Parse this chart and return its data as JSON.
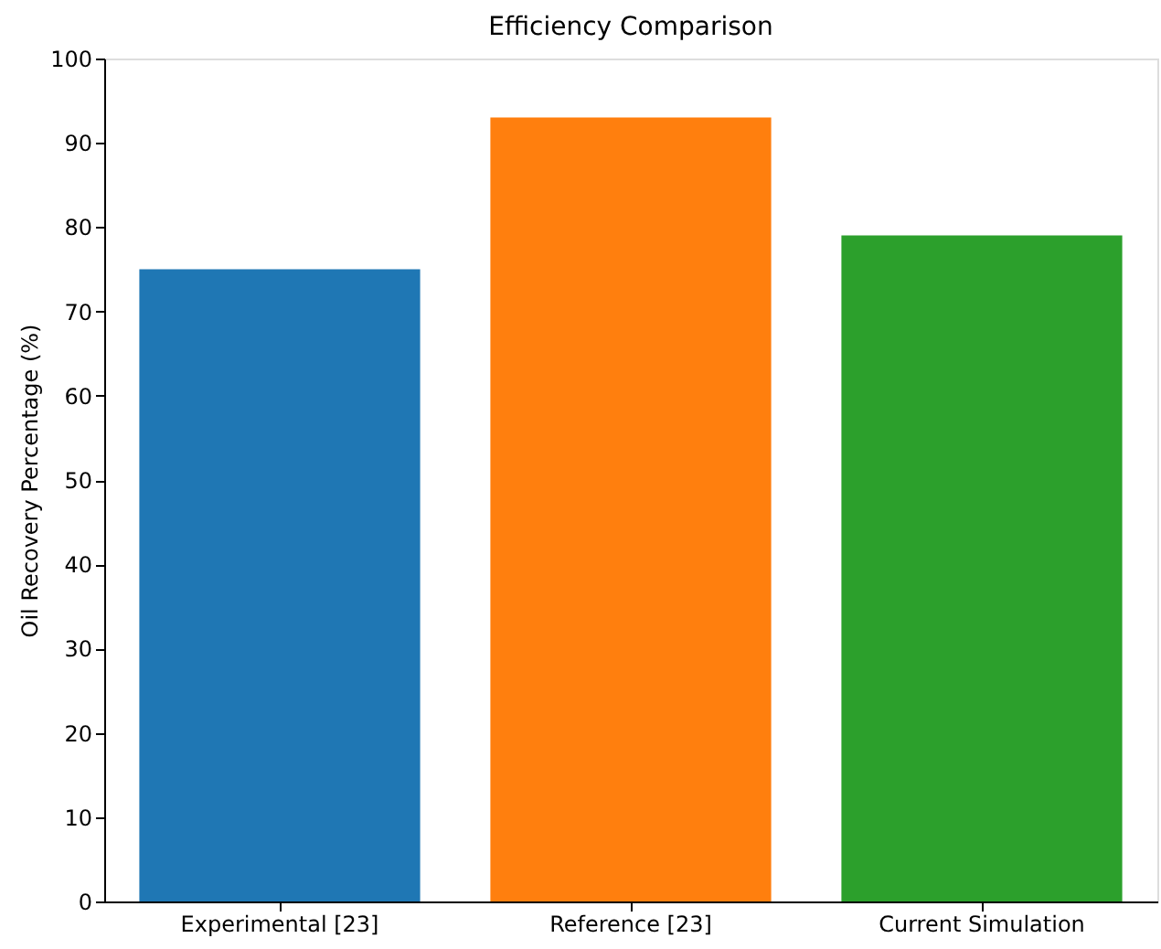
{
  "chart_data": {
    "type": "bar",
    "title": "Efficiency Comparison",
    "ylabel": "Oil Recovery Percentage (%)",
    "categories": [
      "Experimental [23]",
      "Reference [23]",
      "Current Simulation"
    ],
    "values": [
      75,
      93,
      79
    ],
    "colors": [
      "#1f77b4",
      "#ff7f0e",
      "#2ca02c"
    ],
    "ylim": [
      0,
      100
    ],
    "yticks": [
      0,
      10,
      20,
      30,
      40,
      50,
      60,
      70,
      80,
      90,
      100
    ],
    "grid": false
  }
}
